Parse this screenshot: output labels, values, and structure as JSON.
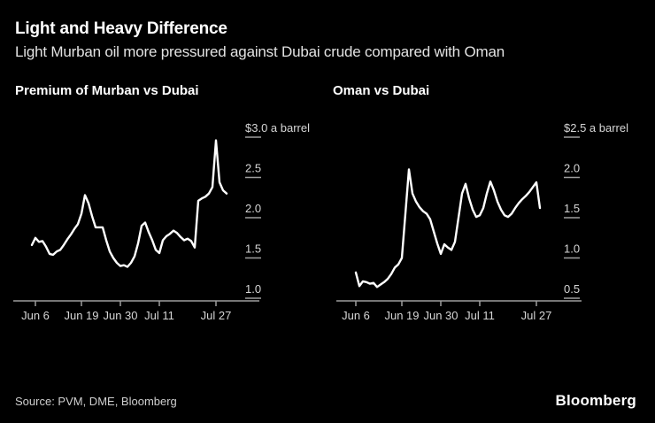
{
  "header": {
    "title": "Light and Heavy Difference",
    "subtitle": "Light Murban oil more pressured against Dubai crude compared with Oman"
  },
  "footer": {
    "source": "Source: PVM, DME, Bloomberg",
    "brand": "Bloomberg"
  },
  "colors": {
    "background": "#000000",
    "text_primary": "#ffffff",
    "text_secondary": "#e2e2e2",
    "tick_label": "#d6d6d6",
    "axis": "#9e9e9e",
    "line": "#ffffff"
  },
  "chart_data": [
    {
      "type": "line",
      "title": "Premium of Murban vs Dubai",
      "unit_label": "$3.0 a barrel",
      "ylim": [
        1.0,
        3.0
      ],
      "grid": "off",
      "axis_position": "right",
      "y_ticks": [
        {
          "label": "$3.0 a barrel",
          "value": 3.0
        },
        {
          "label": "2.5",
          "value": 2.5
        },
        {
          "label": "2.0",
          "value": 2.0
        },
        {
          "label": "1.5",
          "value": 1.5
        },
        {
          "label": "1.0",
          "value": 1.0
        }
      ],
      "x_ticks": [
        {
          "label": "Jun 6",
          "day": 0
        },
        {
          "label": "Jun 19",
          "day": 13
        },
        {
          "label": "Jun 30",
          "day": 24
        },
        {
          "label": "Jul 11",
          "day": 35
        },
        {
          "label": "Jul 27",
          "day": 51
        }
      ],
      "start_day": -1,
      "values": [
        1.66,
        1.75,
        1.7,
        1.71,
        1.64,
        1.55,
        1.54,
        1.58,
        1.6,
        1.66,
        1.73,
        1.79,
        1.86,
        1.92,
        2.05,
        2.28,
        2.18,
        2.02,
        1.88,
        1.88,
        1.88,
        1.72,
        1.58,
        1.5,
        1.44,
        1.4,
        1.41,
        1.39,
        1.44,
        1.52,
        1.68,
        1.9,
        1.94,
        1.82,
        1.72,
        1.6,
        1.56,
        1.72,
        1.77,
        1.8,
        1.84,
        1.81,
        1.76,
        1.72,
        1.74,
        1.71,
        1.63,
        2.21,
        2.24,
        2.26,
        2.3,
        2.38,
        2.96,
        2.44,
        2.34,
        2.3
      ]
    },
    {
      "type": "line",
      "title": "Oman vs Dubai",
      "unit_label": "$2.5 a barrel",
      "ylim": [
        0.5,
        2.5
      ],
      "grid": "off",
      "axis_position": "right",
      "y_ticks": [
        {
          "label": "$2.5 a barrel",
          "value": 2.5
        },
        {
          "label": "2.0",
          "value": 2.0
        },
        {
          "label": "1.5",
          "value": 1.5
        },
        {
          "label": "1.0",
          "value": 1.0
        },
        {
          "label": "0.5",
          "value": 0.5
        }
      ],
      "x_ticks": [
        {
          "label": "Jun 6",
          "day": 0
        },
        {
          "label": "Jun 19",
          "day": 13
        },
        {
          "label": "Jun 30",
          "day": 24
        },
        {
          "label": "Jul 11",
          "day": 35
        },
        {
          "label": "Jul 27",
          "day": 51
        }
      ],
      "start_day": 0,
      "values": [
        0.82,
        0.65,
        0.71,
        0.7,
        0.68,
        0.69,
        0.64,
        0.67,
        0.7,
        0.74,
        0.8,
        0.88,
        0.92,
        1.0,
        1.55,
        2.1,
        1.8,
        1.7,
        1.63,
        1.58,
        1.55,
        1.48,
        1.33,
        1.18,
        1.05,
        1.17,
        1.13,
        1.1,
        1.2,
        1.5,
        1.8,
        1.92,
        1.74,
        1.6,
        1.51,
        1.53,
        1.62,
        1.8,
        1.95,
        1.84,
        1.7,
        1.6,
        1.53,
        1.51,
        1.55,
        1.62,
        1.68,
        1.73,
        1.77,
        1.82,
        1.88,
        1.94,
        1.62
      ]
    }
  ]
}
